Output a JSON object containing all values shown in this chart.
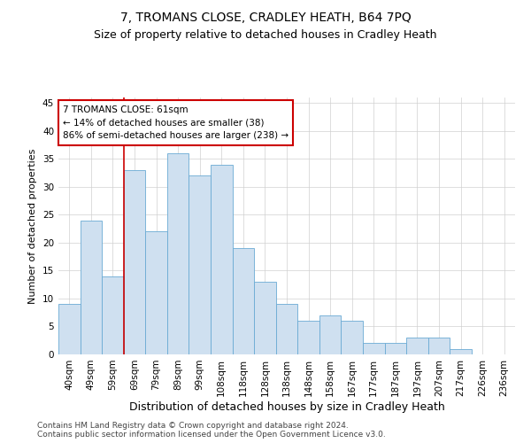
{
  "title": "7, TROMANS CLOSE, CRADLEY HEATH, B64 7PQ",
  "subtitle": "Size of property relative to detached houses in Cradley Heath",
  "xlabel": "Distribution of detached houses by size in Cradley Heath",
  "ylabel": "Number of detached properties",
  "footer_line1": "Contains HM Land Registry data © Crown copyright and database right 2024.",
  "footer_line2": "Contains public sector information licensed under the Open Government Licence v3.0.",
  "categories": [
    "40sqm",
    "49sqm",
    "59sqm",
    "69sqm",
    "79sqm",
    "89sqm",
    "99sqm",
    "108sqm",
    "118sqm",
    "128sqm",
    "138sqm",
    "148sqm",
    "158sqm",
    "167sqm",
    "177sqm",
    "187sqm",
    "197sqm",
    "207sqm",
    "217sqm",
    "226sqm",
    "236sqm"
  ],
  "values": [
    9,
    24,
    14,
    33,
    22,
    36,
    32,
    34,
    19,
    13,
    9,
    6,
    7,
    6,
    2,
    2,
    3,
    3,
    1,
    0,
    0
  ],
  "bar_color": "#cfe0f0",
  "bar_edge_color": "#6aaad4",
  "annotation_box_text": "7 TROMANS CLOSE: 61sqm\n← 14% of detached houses are smaller (38)\n86% of semi-detached houses are larger (238) →",
  "annotation_box_color": "#ffffff",
  "annotation_box_edge_color": "#cc0000",
  "vline_x": 2.5,
  "vline_color": "#cc0000",
  "ylim": [
    0,
    46
  ],
  "yticks": [
    0,
    5,
    10,
    15,
    20,
    25,
    30,
    35,
    40,
    45
  ],
  "grid_color": "#d0d0d0",
  "background_color": "#ffffff",
  "title_fontsize": 10,
  "subtitle_fontsize": 9,
  "ylabel_fontsize": 8,
  "xlabel_fontsize": 9,
  "tick_fontsize": 7.5,
  "ann_fontsize": 7.5,
  "footer_fontsize": 6.5
}
